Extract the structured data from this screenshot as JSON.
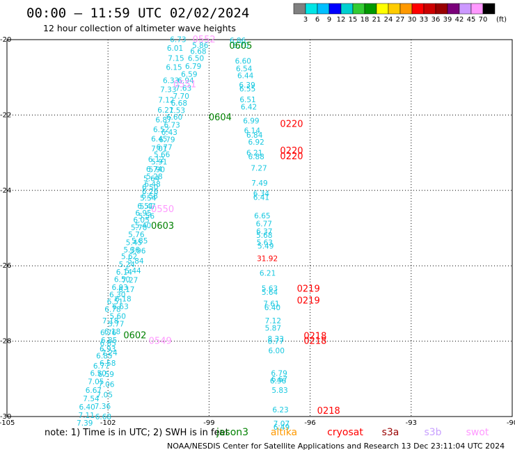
{
  "title": "00:00 — 11:59 UTC 02/02/2024",
  "subtitle": "12 hour collection of altimeter wave heights",
  "note": "note:  1) Time is in UTC; 2) SWH is in feet",
  "credit": "NOAA/NESDIS Center for Satellite Applications and Research    13 Dec 23:11:04 UTC 2024",
  "colorbar": {
    "unit": "(ft)",
    "colors": [
      "#808080",
      "#00e5e5",
      "#00bfff",
      "#0000ff",
      "#00d0d0",
      "#33cc33",
      "#009900",
      "#ffff00",
      "#ffcc00",
      "#ff9900",
      "#ff0000",
      "#cc0000",
      "#990000",
      "#7a007a",
      "#cc99ff",
      "#ff99ff",
      "#000000"
    ],
    "labels": [
      "3",
      "6",
      "9",
      "12",
      "15",
      "18",
      "21",
      "24",
      "27",
      "30",
      "33",
      "36",
      "39",
      "42",
      "45",
      "70"
    ]
  },
  "satellites": [
    {
      "name": "jason3",
      "color": "#008000"
    },
    {
      "name": "altika",
      "color": "#ff9900"
    },
    {
      "name": "cryosat",
      "color": "#ff0000"
    },
    {
      "name": "s3a",
      "color": "#990000"
    },
    {
      "name": "s3b",
      "color": "#c8a0ff"
    },
    {
      "name": "swot",
      "color": "#ff99ff"
    }
  ],
  "chart_data": {
    "type": "scatter",
    "xlim": [
      -105,
      -90
    ],
    "ylim": [
      -30,
      -20
    ],
    "x_ticks": [
      "-105",
      "-102",
      "-99",
      "-96",
      "-93",
      "-90"
    ],
    "y_ticks": [
      "-20",
      "-22",
      "-24",
      "-26",
      "-28",
      "-30"
    ],
    "x_tick_values": [
      -105,
      -102,
      -99,
      -96,
      -93,
      -90
    ],
    "y_tick_values": [
      -20,
      -22,
      -24,
      -26,
      -28,
      -30
    ],
    "grid": "dotted",
    "points": [
      {
        "lon": -99.92,
        "lat": -19.99,
        "v": "6.73"
      },
      {
        "lon": -100.01,
        "lat": -20.22,
        "v": "6.01"
      },
      {
        "lon": -99.98,
        "lat": -20.49,
        "v": "7.15"
      },
      {
        "lon": -100.04,
        "lat": -20.73,
        "v": "6.15"
      },
      {
        "lon": -100.13,
        "lat": -21.08,
        "v": "6.33"
      },
      {
        "lon": -100.21,
        "lat": -21.32,
        "v": "7.33"
      },
      {
        "lon": -100.27,
        "lat": -21.6,
        "v": "7.12"
      },
      {
        "lon": -100.29,
        "lat": -21.86,
        "v": "6.21"
      },
      {
        "lon": -100.35,
        "lat": -22.12,
        "v": "6.87"
      },
      {
        "lon": -100.42,
        "lat": -22.38,
        "v": "6.52"
      },
      {
        "lon": -100.48,
        "lat": -22.63,
        "v": "6.45"
      },
      {
        "lon": -100.48,
        "lat": -22.89,
        "v": "7.01"
      },
      {
        "lon": -100.57,
        "lat": -23.17,
        "v": "6.12"
      },
      {
        "lon": -100.63,
        "lat": -23.43,
        "v": "6.74"
      },
      {
        "lon": -100.71,
        "lat": -23.68,
        "v": "5.64"
      },
      {
        "lon": -100.75,
        "lat": -23.91,
        "v": "6.50"
      },
      {
        "lon": -100.76,
        "lat": -24.14,
        "v": "6.58"
      },
      {
        "lon": -100.82,
        "lat": -24.42,
        "v": "5.47"
      },
      {
        "lon": -100.86,
        "lat": -24.68,
        "v": "5.56"
      },
      {
        "lon": -100.96,
        "lat": -24.93,
        "v": "5.40"
      },
      {
        "lon": -101.06,
        "lat": -25.33,
        "v": "5.85"
      },
      {
        "lon": -101.12,
        "lat": -25.6,
        "v": "5.96"
      },
      {
        "lon": -101.18,
        "lat": -25.87,
        "v": "5.84"
      },
      {
        "lon": -101.26,
        "lat": -26.13,
        "v": "5.44"
      },
      {
        "lon": -101.35,
        "lat": -26.37,
        "v": "7.27"
      },
      {
        "lon": -101.45,
        "lat": -26.62,
        "v": "6.17"
      },
      {
        "lon": -101.55,
        "lat": -26.87,
        "v": "6.18"
      },
      {
        "lon": -101.63,
        "lat": -27.08,
        "v": "6.63"
      },
      {
        "lon": -101.71,
        "lat": -27.33,
        "v": "5.60"
      },
      {
        "lon": -101.76,
        "lat": -27.54,
        "v": "5.77"
      },
      {
        "lon": -101.87,
        "lat": -27.74,
        "v": "6.18"
      },
      {
        "lon": -101.97,
        "lat": -27.97,
        "v": "6.85"
      },
      {
        "lon": -102.01,
        "lat": -28.2,
        "v": "6.93"
      },
      {
        "lon": -102.11,
        "lat": -28.39,
        "v": "6.85"
      },
      {
        "lon": -102.2,
        "lat": -28.65,
        "v": "6.77"
      },
      {
        "lon": -102.29,
        "lat": -28.85,
        "v": "6.50"
      },
      {
        "lon": -102.36,
        "lat": -29.07,
        "v": "7.05"
      },
      {
        "lon": -102.43,
        "lat": -29.3,
        "v": "6.67"
      },
      {
        "lon": -102.5,
        "lat": -29.52,
        "v": "7.54"
      },
      {
        "lon": -102.62,
        "lat": -29.74,
        "v": "6.40"
      },
      {
        "lon": -102.64,
        "lat": -29.96,
        "v": "7.11"
      },
      {
        "lon": -102.69,
        "lat": -30.17,
        "v": "7.39"
      },
      {
        "lon": -99.26,
        "lat": -20.15,
        "v": "5.86"
      },
      {
        "lon": -99.32,
        "lat": -20.3,
        "v": "6.68"
      },
      {
        "lon": -99.39,
        "lat": -20.49,
        "v": "6.50"
      },
      {
        "lon": -99.47,
        "lat": -20.7,
        "v": "6.79"
      },
      {
        "lon": -99.59,
        "lat": -20.91,
        "v": "6.59"
      },
      {
        "lon": -99.69,
        "lat": -21.08,
        "v": "6.94"
      },
      {
        "lon": -99.76,
        "lat": -21.28,
        "v": "7.63"
      },
      {
        "lon": -99.83,
        "lat": -21.49,
        "v": "7.70"
      },
      {
        "lon": -99.89,
        "lat": -21.68,
        "v": "6.68"
      },
      {
        "lon": -99.95,
        "lat": -21.87,
        "v": "7.53"
      },
      {
        "lon": -100.03,
        "lat": -22.05,
        "v": "6.60"
      },
      {
        "lon": -100.1,
        "lat": -22.26,
        "v": "6.73"
      },
      {
        "lon": -100.18,
        "lat": -22.45,
        "v": "6.43"
      },
      {
        "lon": -100.25,
        "lat": -22.65,
        "v": "6.79"
      },
      {
        "lon": -100.33,
        "lat": -22.85,
        "v": "6.77"
      },
      {
        "lon": -100.4,
        "lat": -23.04,
        "v": "5.66"
      },
      {
        "lon": -100.48,
        "lat": -23.24,
        "v": "5.91"
      },
      {
        "lon": -100.55,
        "lat": -23.44,
        "v": "5.90"
      },
      {
        "lon": -100.62,
        "lat": -23.63,
        "v": "5.28"
      },
      {
        "lon": -100.68,
        "lat": -23.83,
        "v": "6.48"
      },
      {
        "lon": -100.75,
        "lat": -24.02,
        "v": "6.26"
      },
      {
        "lon": -100.81,
        "lat": -24.2,
        "v": "5.54"
      },
      {
        "lon": -100.89,
        "lat": -24.41,
        "v": "6.51"
      },
      {
        "lon": -100.95,
        "lat": -24.59,
        "v": "6.95"
      },
      {
        "lon": -101.01,
        "lat": -24.78,
        "v": "6.05"
      },
      {
        "lon": -101.08,
        "lat": -24.98,
        "v": "5.70"
      },
      {
        "lon": -101.16,
        "lat": -25.17,
        "v": "5.76"
      },
      {
        "lon": -101.23,
        "lat": -25.38,
        "v": "5.45"
      },
      {
        "lon": -101.3,
        "lat": -25.57,
        "v": "5.36"
      },
      {
        "lon": -101.37,
        "lat": -25.75,
        "v": "5.62"
      },
      {
        "lon": -101.44,
        "lat": -25.96,
        "v": "5.24"
      },
      {
        "lon": -101.52,
        "lat": -26.16,
        "v": "6.14"
      },
      {
        "lon": -101.58,
        "lat": -26.36,
        "v": "6.50"
      },
      {
        "lon": -101.65,
        "lat": -26.57,
        "v": "6.93"
      },
      {
        "lon": -101.72,
        "lat": -26.76,
        "v": "6.30"
      },
      {
        "lon": -101.79,
        "lat": -26.95,
        "v": "6.51"
      },
      {
        "lon": -101.86,
        "lat": -27.15,
        "v": "6.78"
      },
      {
        "lon": -101.93,
        "lat": -27.45,
        "v": "7.18"
      },
      {
        "lon": -101.99,
        "lat": -27.77,
        "v": "6.76"
      },
      {
        "lon": -102.0,
        "lat": -28.05,
        "v": "6.85"
      },
      {
        "lon": -101.96,
        "lat": -28.3,
        "v": "7.24"
      },
      {
        "lon": -102.01,
        "lat": -28.58,
        "v": "6.58"
      },
      {
        "lon": -102.06,
        "lat": -28.87,
        "v": "6.59"
      },
      {
        "lon": -102.05,
        "lat": -29.14,
        "v": "7.06"
      },
      {
        "lon": -102.1,
        "lat": -29.42,
        "v": "7.05"
      },
      {
        "lon": -102.16,
        "lat": -29.72,
        "v": "7.36"
      },
      {
        "lon": -102.14,
        "lat": -30.0,
        "v": "6.68"
      },
      {
        "lon": -98.15,
        "lat": -20.02,
        "v": "6.86"
      },
      {
        "lon": -98.06,
        "lat": -20.15,
        "v": "6.70"
      },
      {
        "lon": -97.99,
        "lat": -20.56,
        "v": "6.60"
      },
      {
        "lon": -97.96,
        "lat": -20.77,
        "v": "6.54"
      },
      {
        "lon": -97.92,
        "lat": -20.95,
        "v": "6.44"
      },
      {
        "lon": -97.87,
        "lat": -21.2,
        "v": "6.39"
      },
      {
        "lon": -97.86,
        "lat": -21.3,
        "v": "6.55"
      },
      {
        "lon": -97.85,
        "lat": -21.59,
        "v": "6.51"
      },
      {
        "lon": -97.82,
        "lat": -21.78,
        "v": "6.42"
      },
      {
        "lon": -97.75,
        "lat": -22.15,
        "v": "6.99"
      },
      {
        "lon": -97.72,
        "lat": -22.41,
        "v": "6.14"
      },
      {
        "lon": -97.65,
        "lat": -22.53,
        "v": "6.84"
      },
      {
        "lon": -97.6,
        "lat": -22.71,
        "v": "6.92"
      },
      {
        "lon": -97.65,
        "lat": -23.0,
        "v": "6.21"
      },
      {
        "lon": -97.6,
        "lat": -23.1,
        "v": "6.88"
      },
      {
        "lon": -97.52,
        "lat": -23.4,
        "v": "7.27"
      },
      {
        "lon": -97.5,
        "lat": -23.8,
        "v": "7.49"
      },
      {
        "lon": -97.45,
        "lat": -24.08,
        "v": "6.34"
      },
      {
        "lon": -97.45,
        "lat": -24.18,
        "v": "6.41"
      },
      {
        "lon": -97.42,
        "lat": -24.67,
        "v": "6.65"
      },
      {
        "lon": -97.37,
        "lat": -24.88,
        "v": "6.77"
      },
      {
        "lon": -97.36,
        "lat": -25.08,
        "v": "6.37"
      },
      {
        "lon": -97.36,
        "lat": -25.18,
        "v": "5.68"
      },
      {
        "lon": -97.35,
        "lat": -25.38,
        "v": "5.63"
      },
      {
        "lon": -97.32,
        "lat": -25.47,
        "v": "5.49"
      },
      {
        "lon": -97.27,
        "lat": -25.8,
        "v": "31.92"
      },
      {
        "lon": -97.26,
        "lat": -26.19,
        "v": "6.21"
      },
      {
        "lon": -97.2,
        "lat": -26.6,
        "v": "5.63"
      },
      {
        "lon": -97.2,
        "lat": -26.7,
        "v": "5.64"
      },
      {
        "lon": -97.15,
        "lat": -27.0,
        "v": "7.61"
      },
      {
        "lon": -97.12,
        "lat": -27.1,
        "v": "6.40"
      },
      {
        "lon": -97.1,
        "lat": -27.45,
        "v": "7.12"
      },
      {
        "lon": -97.1,
        "lat": -27.65,
        "v": "5.87"
      },
      {
        "lon": -97.02,
        "lat": -27.93,
        "v": "8.33"
      },
      {
        "lon": -97.02,
        "lat": -28.0,
        "v": "6.77"
      },
      {
        "lon": -97.0,
        "lat": -28.25,
        "v": "6.00"
      },
      {
        "lon": -96.92,
        "lat": -28.85,
        "v": "6.79"
      },
      {
        "lon": -96.91,
        "lat": -29.0,
        "v": "6.67"
      },
      {
        "lon": -96.95,
        "lat": -29.05,
        "v": "6.96"
      },
      {
        "lon": -96.9,
        "lat": -29.3,
        "v": "5.83"
      },
      {
        "lon": -96.88,
        "lat": -29.82,
        "v": "6.23"
      },
      {
        "lon": -96.85,
        "lat": -30.18,
        "v": "7.07"
      },
      {
        "lon": -96.85,
        "lat": -30.28,
        "v": "6.49"
      }
    ],
    "red_points": [
      {
        "lon": -97.28,
        "lat": -25.83,
        "v": "31.92",
        "color": "#ff0000"
      }
    ],
    "pass_labels": [
      {
        "lon": -99.15,
        "lat": -19.98,
        "v": "0552",
        "sat": "swot"
      },
      {
        "lon": -98.06,
        "lat": -20.15,
        "v": "0605",
        "sat": "jason3"
      },
      {
        "lon": -99.72,
        "lat": -21.17,
        "v": "0551",
        "sat": "swot"
      },
      {
        "lon": -98.67,
        "lat": -22.05,
        "v": "0604",
        "sat": "jason3"
      },
      {
        "lon": -96.55,
        "lat": -22.22,
        "v": "0220",
        "sat": "cryosat"
      },
      {
        "lon": -96.55,
        "lat": -22.93,
        "v": "0220",
        "sat": "cryosat"
      },
      {
        "lon": -96.55,
        "lat": -23.08,
        "v": "0220",
        "sat": "cryosat"
      },
      {
        "lon": -100.38,
        "lat": -24.48,
        "v": "0550",
        "sat": "swot"
      },
      {
        "lon": -100.38,
        "lat": -24.93,
        "v": "0603",
        "sat": "jason3"
      },
      {
        "lon": -96.05,
        "lat": -26.6,
        "v": "0219",
        "sat": "cryosat"
      },
      {
        "lon": -96.05,
        "lat": -26.91,
        "v": "0219",
        "sat": "cryosat"
      },
      {
        "lon": -101.2,
        "lat": -27.83,
        "v": "0602",
        "sat": "jason3"
      },
      {
        "lon": -100.45,
        "lat": -27.98,
        "v": "0549",
        "sat": "swot"
      },
      {
        "lon": -95.85,
        "lat": -27.85,
        "v": "0218",
        "sat": "cryosat"
      },
      {
        "lon": -95.85,
        "lat": -27.98,
        "v": "0218",
        "sat": "cryosat"
      },
      {
        "lon": -95.45,
        "lat": -29.83,
        "v": "0218",
        "sat": "cryosat"
      }
    ]
  }
}
